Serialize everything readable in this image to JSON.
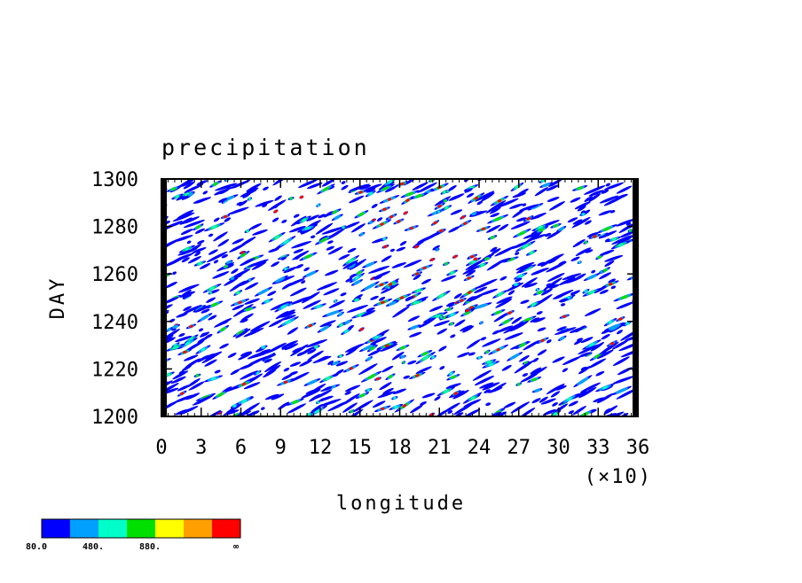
{
  "chart_data": {
    "type": "heatmap",
    "title": "precipitation",
    "xlabel": "longitude",
    "ylabel": "DAY",
    "x_multiplier_label": "(×10)",
    "xlim": [
      0,
      36
    ],
    "ylim": [
      1200,
      1300
    ],
    "x_ticks": [
      "0",
      "3",
      "6",
      "9",
      "12",
      "15",
      "18",
      "21",
      "24",
      "27",
      "30",
      "33",
      "36"
    ],
    "y_ticks": [
      "1200",
      "1220",
      "1240",
      "1260",
      "1280",
      "1300"
    ],
    "grid": false,
    "colorbar": {
      "colors": [
        "#0000ff",
        "#00a0ff",
        "#00ffc8",
        "#00e000",
        "#ffff00",
        "#ffa000",
        "#ff0000"
      ],
      "labels": [
        "80.0",
        "480.",
        "880.",
        "∞"
      ]
    },
    "field_description": "Hovmöller plot of precipitation: scattered eastward-propagating streaks, values mostly in lowest contour level with isolated maxima near longitude 180-230"
  }
}
